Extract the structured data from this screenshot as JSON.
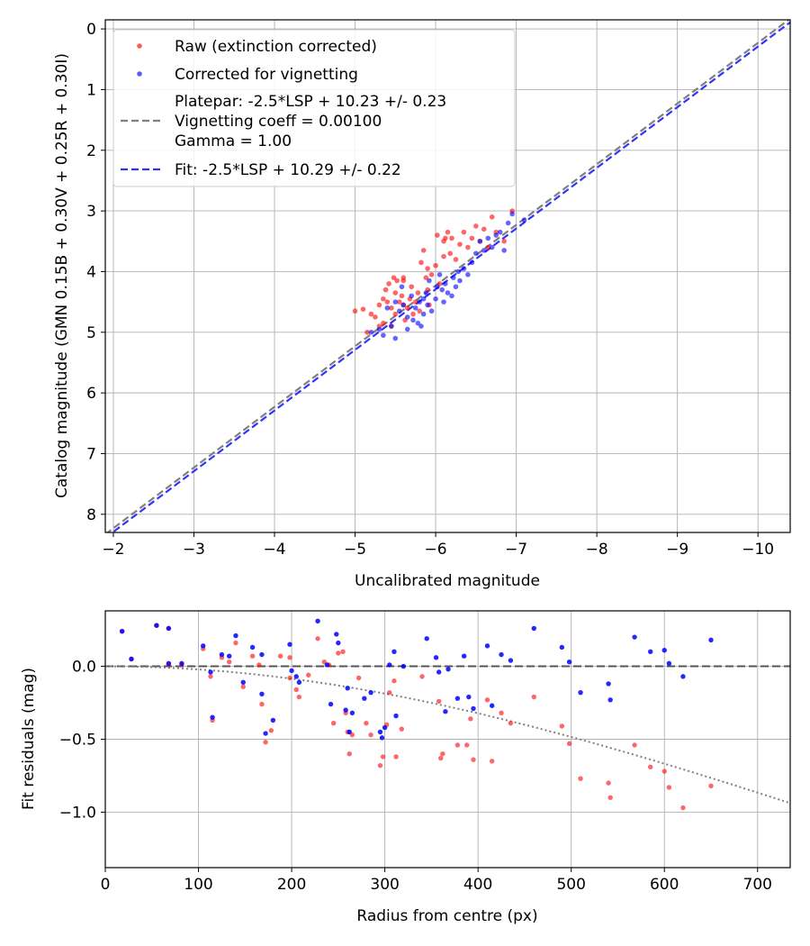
{
  "chart_data": [
    {
      "type": "scatter",
      "xlabel": "Uncalibrated magnitude",
      "ylabel": "Catalog magnitude (GMN 0.15B + 0.30V + 0.25R + 0.30I)",
      "xlim": [
        -1.9,
        -10.4
      ],
      "ylim": [
        8.3,
        -0.15
      ],
      "x_inverted": true,
      "y_inverted": true,
      "xticks": [
        -2,
        -3,
        -4,
        -5,
        -6,
        -7,
        -8,
        -9,
        -10
      ],
      "xtick_labels": [
        "−2",
        "−3",
        "−4",
        "−5",
        "−6",
        "−7",
        "−8",
        "−9",
        "−10"
      ],
      "yticks": [
        0,
        1,
        2,
        3,
        4,
        5,
        6,
        7,
        8
      ],
      "ytick_labels": [
        "0",
        "1",
        "2",
        "3",
        "4",
        "5",
        "6",
        "7",
        "8"
      ],
      "grid": true,
      "legend_position": "upper-left",
      "legend": [
        {
          "label": "Raw (extinction corrected)",
          "marker": "dot",
          "color": "#ff0000"
        },
        {
          "label": "Corrected for vignetting",
          "marker": "dot",
          "color": "#0000ff"
        },
        {
          "label": "Platepar: -2.5*LSP + 10.23 +/- 0.23",
          "marker": "dashed",
          "color": "#808080"
        },
        {
          "label": "Vignetting coeff = 0.00100",
          "marker": "none"
        },
        {
          "label": "Gamma = 1.00",
          "marker": "none"
        },
        {
          "label": "Fit: -2.5*LSP + 10.29 +/- 0.22",
          "marker": "dashed",
          "color": "#0000ff"
        }
      ],
      "lines": [
        {
          "name": "Platepar",
          "offset": 10.23,
          "color": "#808080"
        },
        {
          "name": "Fit",
          "offset": 10.29,
          "color": "#3333ff"
        }
      ],
      "series": [
        {
          "name": "Raw (extinction corrected)",
          "color": "#ff0000",
          "points": [
            [
              -5.0,
              4.65
            ],
            [
              -5.1,
              4.62
            ],
            [
              -5.15,
              5.0
            ],
            [
              -5.2,
              4.7
            ],
            [
              -5.25,
              4.75
            ],
            [
              -5.3,
              4.55
            ],
            [
              -5.35,
              4.45
            ],
            [
              -5.35,
              4.85
            ],
            [
              -5.38,
              4.3
            ],
            [
              -5.4,
              4.5
            ],
            [
              -5.42,
              4.2
            ],
            [
              -5.45,
              4.6
            ],
            [
              -5.45,
              4.9
            ],
            [
              -5.48,
              4.1
            ],
            [
              -5.5,
              4.35
            ],
            [
              -5.5,
              4.7
            ],
            [
              -5.52,
              4.15
            ],
            [
              -5.55,
              4.5
            ],
            [
              -5.58,
              4.4
            ],
            [
              -5.6,
              4.55
            ],
            [
              -5.6,
              4.15
            ],
            [
              -5.62,
              4.8
            ],
            [
              -5.65,
              4.6
            ],
            [
              -5.68,
              4.45
            ],
            [
              -5.7,
              4.25
            ],
            [
              -5.72,
              4.7
            ],
            [
              -5.75,
              4.5
            ],
            [
              -5.78,
              4.35
            ],
            [
              -5.8,
              4.65
            ],
            [
              -5.82,
              3.85
            ],
            [
              -5.85,
              3.65
            ],
            [
              -5.88,
              4.1
            ],
            [
              -5.9,
              4.3
            ],
            [
              -5.92,
              4.55
            ],
            [
              -5.95,
              4.05
            ],
            [
              -6.0,
              3.9
            ],
            [
              -6.02,
              3.4
            ],
            [
              -6.05,
              4.2
            ],
            [
              -6.1,
              3.75
            ],
            [
              -6.12,
              3.45
            ],
            [
              -6.15,
              3.35
            ],
            [
              -6.18,
              3.7
            ],
            [
              -6.2,
              3.45
            ],
            [
              -6.25,
              3.8
            ],
            [
              -6.3,
              3.55
            ],
            [
              -6.35,
              3.35
            ],
            [
              -6.4,
              3.6
            ],
            [
              -6.45,
              3.45
            ],
            [
              -6.5,
              3.25
            ],
            [
              -6.55,
              3.5
            ],
            [
              -6.6,
              3.3
            ],
            [
              -6.65,
              3.6
            ],
            [
              -6.7,
              3.1
            ],
            [
              -6.75,
              3.35
            ],
            [
              -6.85,
              3.5
            ],
            [
              -6.95,
              3.0
            ],
            [
              -5.6,
              4.1
            ],
            [
              -5.3,
              4.9
            ],
            [
              -6.1,
              3.5
            ],
            [
              -5.9,
              3.95
            ]
          ]
        },
        {
          "name": "Corrected for vignetting",
          "color": "#0000ff",
          "points": [
            [
              -5.2,
              5.0
            ],
            [
              -5.3,
              4.95
            ],
            [
              -5.35,
              5.05
            ],
            [
              -5.4,
              4.6
            ],
            [
              -5.45,
              4.9
            ],
            [
              -5.5,
              4.5
            ],
            [
              -5.5,
              5.1
            ],
            [
              -5.55,
              4.65
            ],
            [
              -5.6,
              4.55
            ],
            [
              -5.65,
              4.75
            ],
            [
              -5.7,
              4.4
            ],
            [
              -5.72,
              4.8
            ],
            [
              -5.75,
              4.6
            ],
            [
              -5.78,
              4.85
            ],
            [
              -5.8,
              4.5
            ],
            [
              -5.82,
              4.9
            ],
            [
              -5.85,
              4.7
            ],
            [
              -5.88,
              4.35
            ],
            [
              -5.9,
              4.55
            ],
            [
              -5.92,
              4.15
            ],
            [
              -5.95,
              4.65
            ],
            [
              -6.0,
              4.45
            ],
            [
              -6.02,
              4.25
            ],
            [
              -6.05,
              4.05
            ],
            [
              -6.08,
              4.3
            ],
            [
              -6.1,
              4.5
            ],
            [
              -6.12,
              4.2
            ],
            [
              -6.15,
              4.35
            ],
            [
              -6.2,
              4.4
            ],
            [
              -6.22,
              4.1
            ],
            [
              -6.25,
              4.25
            ],
            [
              -6.3,
              4.15
            ],
            [
              -6.35,
              3.95
            ],
            [
              -6.4,
              4.05
            ],
            [
              -6.45,
              3.85
            ],
            [
              -6.5,
              3.7
            ],
            [
              -6.55,
              3.5
            ],
            [
              -6.6,
              3.65
            ],
            [
              -6.65,
              3.45
            ],
            [
              -6.7,
              3.6
            ],
            [
              -6.75,
              3.4
            ],
            [
              -6.8,
              3.35
            ],
            [
              -6.85,
              3.65
            ],
            [
              -6.9,
              3.2
            ],
            [
              -6.95,
              3.05
            ],
            [
              -7.1,
              3.15
            ],
            [
              -5.58,
              4.25
            ],
            [
              -5.65,
              4.95
            ],
            [
              -6.28,
              4.0
            ],
            [
              -5.85,
              4.45
            ]
          ]
        }
      ]
    },
    {
      "type": "scatter",
      "xlabel": "Radius from centre (px)",
      "ylabel": "Fit residuals (mag)",
      "xlim": [
        0,
        735
      ],
      "ylim": [
        -1.38,
        0.38
      ],
      "xticks": [
        0,
        100,
        200,
        300,
        400,
        500,
        600,
        700
      ],
      "xtick_labels": [
        "0",
        "100",
        "200",
        "300",
        "400",
        "500",
        "600",
        "700"
      ],
      "yticks": [
        0.0,
        -0.5,
        -1.0
      ],
      "ytick_labels": [
        "0.0",
        "−0.5",
        "−1.0"
      ],
      "grid": true,
      "reference_line": {
        "y": 0.0,
        "style": "dashed",
        "color": "#555555"
      },
      "vignetting_curve": {
        "coeff": 0.001,
        "style": "dotted",
        "color": "#808080"
      },
      "series": [
        {
          "name": "Raw (extinction corrected)",
          "color": "#ff0000",
          "points": [
            [
              18,
              0.24
            ],
            [
              28,
              0.05
            ],
            [
              55,
              0.28
            ],
            [
              68,
              0.26
            ],
            [
              68,
              0.01
            ],
            [
              82,
              0.01
            ],
            [
              105,
              0.12
            ],
            [
              113,
              -0.07
            ],
            [
              115,
              -0.37
            ],
            [
              125,
              0.06
            ],
            [
              133,
              0.03
            ],
            [
              140,
              0.16
            ],
            [
              148,
              -0.14
            ],
            [
              158,
              0.07
            ],
            [
              165,
              0.01
            ],
            [
              168,
              -0.26
            ],
            [
              172,
              -0.52
            ],
            [
              178,
              -0.44
            ],
            [
              188,
              0.07
            ],
            [
              198,
              0.06
            ],
            [
              198,
              -0.08
            ],
            [
              205,
              -0.16
            ],
            [
              208,
              -0.21
            ],
            [
              218,
              -0.06
            ],
            [
              228,
              0.19
            ],
            [
              235,
              0.03
            ],
            [
              240,
              0.01
            ],
            [
              245,
              -0.39
            ],
            [
              250,
              0.09
            ],
            [
              255,
              0.1
            ],
            [
              258,
              -0.32
            ],
            [
              260,
              -0.45
            ],
            [
              262,
              -0.6
            ],
            [
              265,
              -0.47
            ],
            [
              272,
              -0.08
            ],
            [
              280,
              -0.39
            ],
            [
              285,
              -0.47
            ],
            [
              295,
              -0.68
            ],
            [
              298,
              -0.62
            ],
            [
              302,
              -0.4
            ],
            [
              305,
              -0.18
            ],
            [
              310,
              -0.1
            ],
            [
              312,
              -0.62
            ],
            [
              318,
              -0.43
            ],
            [
              340,
              -0.07
            ],
            [
              358,
              -0.24
            ],
            [
              360,
              -0.63
            ],
            [
              362,
              -0.6
            ],
            [
              378,
              -0.54
            ],
            [
              388,
              -0.54
            ],
            [
              392,
              -0.36
            ],
            [
              395,
              -0.64
            ],
            [
              410,
              -0.23
            ],
            [
              415,
              -0.65
            ],
            [
              425,
              -0.32
            ],
            [
              435,
              -0.39
            ],
            [
              460,
              -0.21
            ],
            [
              490,
              -0.41
            ],
            [
              498,
              -0.53
            ],
            [
              510,
              -0.77
            ],
            [
              540,
              -0.8
            ],
            [
              542,
              -0.9
            ],
            [
              568,
              -0.54
            ],
            [
              585,
              -0.69
            ],
            [
              600,
              -0.72
            ],
            [
              605,
              -0.83
            ],
            [
              620,
              -0.97
            ],
            [
              650,
              -0.82
            ]
          ]
        },
        {
          "name": "Corrected for vignetting",
          "color": "#0000ff",
          "points": [
            [
              18,
              0.24
            ],
            [
              28,
              0.05
            ],
            [
              55,
              0.28
            ],
            [
              68,
              0.26
            ],
            [
              68,
              0.02
            ],
            [
              82,
              0.02
            ],
            [
              105,
              0.14
            ],
            [
              113,
              -0.04
            ],
            [
              115,
              -0.35
            ],
            [
              125,
              0.08
            ],
            [
              133,
              0.07
            ],
            [
              140,
              0.21
            ],
            [
              148,
              -0.11
            ],
            [
              158,
              0.13
            ],
            [
              168,
              0.08
            ],
            [
              168,
              -0.19
            ],
            [
              172,
              -0.46
            ],
            [
              180,
              -0.37
            ],
            [
              198,
              0.15
            ],
            [
              200,
              -0.03
            ],
            [
              205,
              -0.07
            ],
            [
              208,
              -0.11
            ],
            [
              228,
              0.31
            ],
            [
              238,
              0.01
            ],
            [
              242,
              -0.26
            ],
            [
              248,
              0.22
            ],
            [
              250,
              0.16
            ],
            [
              258,
              -0.3
            ],
            [
              260,
              -0.15
            ],
            [
              262,
              -0.45
            ],
            [
              265,
              -0.32
            ],
            [
              278,
              -0.22
            ],
            [
              285,
              -0.18
            ],
            [
              295,
              -0.45
            ],
            [
              297,
              -0.49
            ],
            [
              300,
              -0.42
            ],
            [
              305,
              0.01
            ],
            [
              310,
              0.1
            ],
            [
              312,
              -0.34
            ],
            [
              320,
              0.0
            ],
            [
              345,
              0.19
            ],
            [
              355,
              0.06
            ],
            [
              358,
              -0.04
            ],
            [
              365,
              -0.31
            ],
            [
              368,
              -0.02
            ],
            [
              378,
              -0.22
            ],
            [
              385,
              0.07
            ],
            [
              390,
              -0.21
            ],
            [
              395,
              -0.29
            ],
            [
              410,
              0.14
            ],
            [
              415,
              -0.27
            ],
            [
              425,
              0.08
            ],
            [
              435,
              0.04
            ],
            [
              460,
              0.26
            ],
            [
              490,
              0.13
            ],
            [
              498,
              0.03
            ],
            [
              510,
              -0.18
            ],
            [
              540,
              -0.12
            ],
            [
              542,
              -0.23
            ],
            [
              568,
              0.2
            ],
            [
              585,
              0.1
            ],
            [
              600,
              0.11
            ],
            [
              605,
              0.02
            ],
            [
              620,
              -0.07
            ],
            [
              650,
              0.18
            ]
          ]
        }
      ]
    }
  ]
}
